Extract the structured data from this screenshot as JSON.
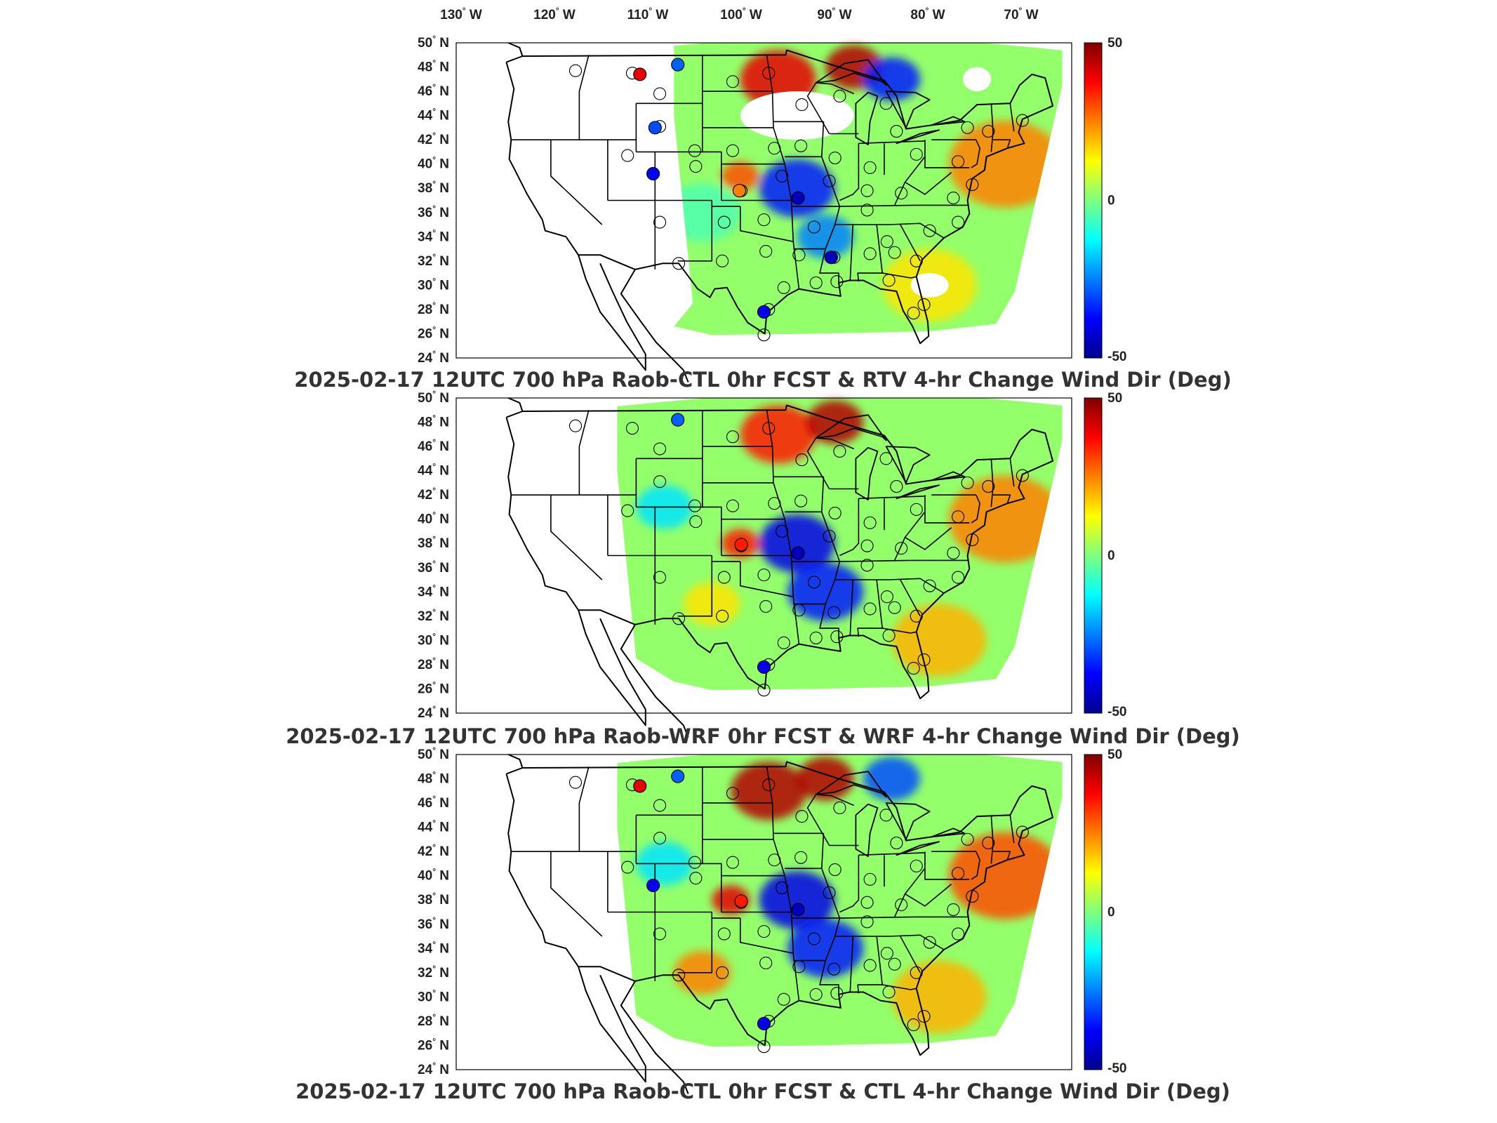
{
  "lon_ticks": [
    "130",
    "120",
    "110",
    "100",
    "90",
    "80",
    "70"
  ],
  "lon_suffix": "W",
  "lat_ticks": [
    "50",
    "48",
    "46",
    "44",
    "42",
    "40",
    "38",
    "36",
    "34",
    "32",
    "30",
    "28",
    "26",
    "24"
  ],
  "lat_suffix": "N",
  "colorbar": {
    "max_label": "50",
    "mid_label": "0",
    "min_label": "-50",
    "colormap": "jet",
    "colors": [
      "#00008f",
      "#0000ff",
      "#00ffff",
      "#7fff7f",
      "#ffff00",
      "#ff0000",
      "#800000"
    ]
  },
  "panels": [
    {
      "title": "2025-02-17 12UTC 700 hPa Raob-CTL 0hr FCST & RTV 4-hr Change Wind Dir (Deg)"
    },
    {
      "title": "2025-02-17 12UTC 700 hPa Raob-WRF 0hr FCST & WRF 4-hr Change Wind Dir (Deg)"
    },
    {
      "title": "2025-02-17 12UTC 700 hPa Raob-CTL 0hr FCST & CTL 4-hr Change Wind Dir (Deg)"
    }
  ],
  "chart_data": {
    "type": "heatmap",
    "map_extent": {
      "lon": [
        -130,
        -65
      ],
      "lat": [
        24,
        50
      ]
    },
    "color_range": [
      -50,
      50
    ],
    "stations": [
      {
        "lon": -117.4,
        "lat": 47.7
      },
      {
        "lon": -111.4,
        "lat": 47.5
      },
      {
        "lon": -108.5,
        "lat": 45.8
      },
      {
        "lon": -100.8,
        "lat": 46.8
      },
      {
        "lon": -97.0,
        "lat": 47.5
      },
      {
        "lon": -93.5,
        "lat": 44.9
      },
      {
        "lon": -89.5,
        "lat": 45.6
      },
      {
        "lon": -84.6,
        "lat": 45.0
      },
      {
        "lon": -83.5,
        "lat": 42.7
      },
      {
        "lon": -76.0,
        "lat": 43.0
      },
      {
        "lon": -73.8,
        "lat": 42.7
      },
      {
        "lon": -70.2,
        "lat": 43.6
      },
      {
        "lon": -108.5,
        "lat": 43.1
      },
      {
        "lon": -104.8,
        "lat": 41.1
      },
      {
        "lon": -100.8,
        "lat": 41.1
      },
      {
        "lon": -96.4,
        "lat": 41.3
      },
      {
        "lon": -93.6,
        "lat": 41.5
      },
      {
        "lon": -90.0,
        "lat": 40.5
      },
      {
        "lon": -86.3,
        "lat": 39.7
      },
      {
        "lon": -81.4,
        "lat": 40.8
      },
      {
        "lon": -77.0,
        "lat": 40.2
      },
      {
        "lon": -111.9,
        "lat": 40.7
      },
      {
        "lon": -104.7,
        "lat": 39.8
      },
      {
        "lon": -99.9,
        "lat": 37.8
      },
      {
        "lon": -95.6,
        "lat": 39.0
      },
      {
        "lon": -90.6,
        "lat": 38.6
      },
      {
        "lon": -86.6,
        "lat": 37.8
      },
      {
        "lon": -83.0,
        "lat": 37.6
      },
      {
        "lon": -77.5,
        "lat": 37.2
      },
      {
        "lon": -75.5,
        "lat": 38.3
      },
      {
        "lon": -108.5,
        "lat": 35.2
      },
      {
        "lon": -101.7,
        "lat": 35.2
      },
      {
        "lon": -97.5,
        "lat": 35.4
      },
      {
        "lon": -92.2,
        "lat": 34.8
      },
      {
        "lon": -86.6,
        "lat": 36.2
      },
      {
        "lon": -84.5,
        "lat": 33.6
      },
      {
        "lon": -80.0,
        "lat": 34.5
      },
      {
        "lon": -77.0,
        "lat": 35.2
      },
      {
        "lon": -90.1,
        "lat": 32.3
      },
      {
        "lon": -86.3,
        "lat": 32.6
      },
      {
        "lon": -83.7,
        "lat": 32.7
      },
      {
        "lon": -106.5,
        "lat": 31.8
      },
      {
        "lon": -101.9,
        "lat": 32.0
      },
      {
        "lon": -97.3,
        "lat": 32.8
      },
      {
        "lon": -93.8,
        "lat": 32.5
      },
      {
        "lon": -81.4,
        "lat": 32.0
      },
      {
        "lon": -97.5,
        "lat": 25.9
      },
      {
        "lon": -97.0,
        "lat": 28.0
      },
      {
        "lon": -95.4,
        "lat": 29.8
      },
      {
        "lon": -92.0,
        "lat": 30.2
      },
      {
        "lon": -89.8,
        "lat": 30.3
      },
      {
        "lon": -84.3,
        "lat": 30.4
      },
      {
        "lon": -81.7,
        "lat": 27.7
      },
      {
        "lon": -80.6,
        "lat": 28.4
      }
    ],
    "panel_station_values": [
      [
        {
          "lon": -110.6,
          "lat": 47.4,
          "v": 40
        },
        {
          "lon": -106.6,
          "lat": 48.2,
          "v": -28
        },
        {
          "lon": -109.0,
          "lat": 43.0,
          "v": -30
        },
        {
          "lon": -109.2,
          "lat": 39.2,
          "v": -38
        },
        {
          "lon": -100.1,
          "lat": 37.8,
          "v": 25
        },
        {
          "lon": -93.9,
          "lat": 37.2,
          "v": -45
        },
        {
          "lon": -90.4,
          "lat": 32.3,
          "v": -45
        },
        {
          "lon": -97.5,
          "lat": 27.8,
          "v": -40
        }
      ],
      [
        {
          "lon": -106.6,
          "lat": 48.2,
          "v": -28
        },
        {
          "lon": -99.9,
          "lat": 37.9,
          "v": 35
        },
        {
          "lon": -93.9,
          "lat": 37.2,
          "v": -45
        },
        {
          "lon": -97.5,
          "lat": 27.8,
          "v": -40
        }
      ],
      [
        {
          "lon": -110.6,
          "lat": 47.4,
          "v": 40
        },
        {
          "lon": -106.6,
          "lat": 48.2,
          "v": -28
        },
        {
          "lon": -109.2,
          "lat": 39.2,
          "v": -38
        },
        {
          "lon": -99.9,
          "lat": 37.9,
          "v": 35
        },
        {
          "lon": -93.9,
          "lat": 37.2,
          "v": -45
        },
        {
          "lon": -97.5,
          "lat": 27.8,
          "v": -40
        }
      ]
    ],
    "field_features": [
      [
        {
          "lon": -96,
          "lat": 47,
          "v": 40,
          "r": 4
        },
        {
          "lon": -88,
          "lat": 48,
          "v": 45,
          "r": 3
        },
        {
          "lon": -84,
          "lat": 47,
          "v": -35,
          "r": 3
        },
        {
          "lon": -94,
          "lat": 38,
          "v": -35,
          "r": 4
        },
        {
          "lon": -91,
          "lat": 34,
          "v": -25,
          "r": 3
        },
        {
          "lon": -100,
          "lat": 39,
          "v": 30,
          "r": 2
        },
        {
          "lon": -72,
          "lat": 40,
          "v": 25,
          "r": 6
        },
        {
          "lon": -80,
          "lat": 30,
          "v": 15,
          "r": 5
        },
        {
          "lon": -104,
          "lat": 36,
          "v": -5,
          "r": 4
        }
      ],
      [
        {
          "lon": -96,
          "lat": 47,
          "v": 35,
          "r": 4
        },
        {
          "lon": -90,
          "lat": 48,
          "v": 45,
          "r": 3
        },
        {
          "lon": -94,
          "lat": 38,
          "v": -40,
          "r": 4
        },
        {
          "lon": -91,
          "lat": 34,
          "v": -35,
          "r": 4
        },
        {
          "lon": -100,
          "lat": 38,
          "v": 35,
          "r": 2
        },
        {
          "lon": -72,
          "lat": 40,
          "v": 25,
          "r": 6
        },
        {
          "lon": -79,
          "lat": 30,
          "v": 20,
          "r": 5
        },
        {
          "lon": -108,
          "lat": 41,
          "v": -15,
          "r": 3
        },
        {
          "lon": -103,
          "lat": 33,
          "v": 15,
          "r": 3
        }
      ],
      [
        {
          "lon": -97,
          "lat": 47,
          "v": 45,
          "r": 4
        },
        {
          "lon": -91,
          "lat": 48,
          "v": 45,
          "r": 3
        },
        {
          "lon": -84,
          "lat": 48,
          "v": -30,
          "r": 3
        },
        {
          "lon": -94,
          "lat": 38,
          "v": -40,
          "r": 4
        },
        {
          "lon": -91,
          "lat": 34,
          "v": -35,
          "r": 4
        },
        {
          "lon": -101,
          "lat": 38,
          "v": 40,
          "r": 2
        },
        {
          "lon": -72,
          "lat": 40,
          "v": 30,
          "r": 6
        },
        {
          "lon": -79,
          "lat": 30,
          "v": 20,
          "r": 5
        },
        {
          "lon": -108,
          "lat": 41,
          "v": -15,
          "r": 3
        },
        {
          "lon": -104,
          "lat": 32,
          "v": 25,
          "r": 3
        }
      ]
    ],
    "field_masks": [
      {
        "west_edge_lon": -107,
        "blank_regions": [
          {
            "lon": -94,
            "lat": 44,
            "rlon": 6,
            "rlat": 2
          },
          {
            "lon": -75,
            "lat": 47,
            "rlon": 1.5,
            "rlat": 1
          },
          {
            "lon": -80,
            "lat": 30,
            "rlon": 2,
            "rlat": 1
          }
        ]
      },
      {
        "west_edge_lon": -113,
        "blank_regions": []
      },
      {
        "west_edge_lon": -113,
        "blank_regions": []
      }
    ]
  }
}
